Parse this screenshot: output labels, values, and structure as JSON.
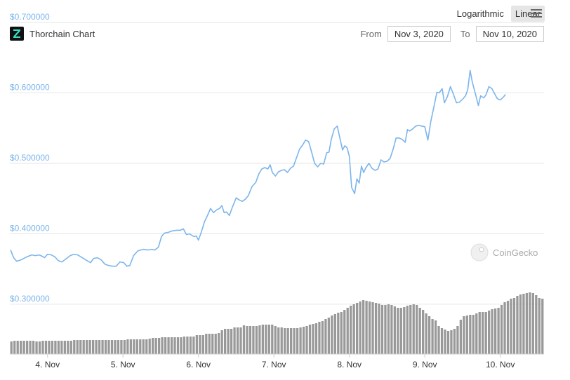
{
  "header": {
    "scale_options": [
      "Logarithmic",
      "Linear"
    ],
    "active_scale": "Linear",
    "title": "Thorchain Chart",
    "from_label": "From",
    "from_date": "Nov 3, 2020",
    "to_label": "To",
    "to_date": "Nov 10, 2020"
  },
  "watermark": "CoinGecko",
  "colors": {
    "line": "#7cb5ec",
    "volume": "#999999",
    "axis_label": "#7cb5ec",
    "grid": "#e6e6e6"
  },
  "chart_data": {
    "type": "line",
    "title": "Thorchain Chart",
    "x_unit": "days from Nov 4, 2020 00:00",
    "xlim": [
      -0.5,
      6.58
    ],
    "ylim": [
      0.28,
      0.72
    ],
    "y_ticks": [
      "$0.300000",
      "$0.400000",
      "$0.500000",
      "$0.600000",
      "$0.700000"
    ],
    "x_ticks": [
      "4. Nov",
      "5. Nov",
      "6. Nov",
      "7. Nov",
      "8. Nov",
      "9. Nov",
      "10. Nov"
    ],
    "series": [
      {
        "type": "line",
        "points": [
          [
            -0.49,
            0.377
          ],
          [
            -0.45,
            0.366
          ],
          [
            -0.41,
            0.361
          ],
          [
            -0.35,
            0.363
          ],
          [
            -0.28,
            0.367
          ],
          [
            -0.21,
            0.37
          ],
          [
            -0.16,
            0.369
          ],
          [
            -0.11,
            0.37
          ],
          [
            -0.07,
            0.368
          ],
          [
            -0.04,
            0.366
          ],
          [
            0.0,
            0.371
          ],
          [
            0.05,
            0.37
          ],
          [
            0.1,
            0.367
          ],
          [
            0.14,
            0.362
          ],
          [
            0.19,
            0.36
          ],
          [
            0.24,
            0.364
          ],
          [
            0.3,
            0.369
          ],
          [
            0.35,
            0.371
          ],
          [
            0.4,
            0.37
          ],
          [
            0.46,
            0.366
          ],
          [
            0.52,
            0.362
          ],
          [
            0.57,
            0.359
          ],
          [
            0.61,
            0.365
          ],
          [
            0.66,
            0.366
          ],
          [
            0.71,
            0.363
          ],
          [
            0.76,
            0.357
          ],
          [
            0.81,
            0.355
          ],
          [
            0.86,
            0.354
          ],
          [
            0.91,
            0.354
          ],
          [
            0.96,
            0.36
          ],
          [
            1.01,
            0.359
          ],
          [
            1.05,
            0.354
          ],
          [
            1.09,
            0.355
          ],
          [
            1.14,
            0.369
          ],
          [
            1.2,
            0.376
          ],
          [
            1.27,
            0.378
          ],
          [
            1.33,
            0.377
          ],
          [
            1.38,
            0.378
          ],
          [
            1.42,
            0.377
          ],
          [
            1.47,
            0.381
          ],
          [
            1.51,
            0.396
          ],
          [
            1.55,
            0.401
          ],
          [
            1.6,
            0.402
          ],
          [
            1.65,
            0.404
          ],
          [
            1.71,
            0.405
          ],
          [
            1.76,
            0.405
          ],
          [
            1.8,
            0.407
          ],
          [
            1.84,
            0.399
          ],
          [
            1.88,
            0.4
          ],
          [
            1.91,
            0.398
          ],
          [
            1.94,
            0.396
          ],
          [
            1.97,
            0.397
          ],
          [
            2.0,
            0.391
          ],
          [
            2.04,
            0.403
          ],
          [
            2.08,
            0.417
          ],
          [
            2.12,
            0.426
          ],
          [
            2.16,
            0.436
          ],
          [
            2.2,
            0.43
          ],
          [
            2.24,
            0.434
          ],
          [
            2.28,
            0.436
          ],
          [
            2.31,
            0.44
          ],
          [
            2.34,
            0.43
          ],
          [
            2.37,
            0.431
          ],
          [
            2.41,
            0.426
          ],
          [
            2.45,
            0.438
          ],
          [
            2.5,
            0.451
          ],
          [
            2.54,
            0.448
          ],
          [
            2.58,
            0.446
          ],
          [
            2.62,
            0.449
          ],
          [
            2.66,
            0.454
          ],
          [
            2.71,
            0.467
          ],
          [
            2.76,
            0.473
          ],
          [
            2.8,
            0.485
          ],
          [
            2.84,
            0.492
          ],
          [
            2.88,
            0.494
          ],
          [
            2.92,
            0.492
          ],
          [
            2.95,
            0.498
          ],
          [
            2.98,
            0.487
          ],
          [
            3.02,
            0.482
          ],
          [
            3.06,
            0.488
          ],
          [
            3.1,
            0.49
          ],
          [
            3.14,
            0.491
          ],
          [
            3.18,
            0.487
          ],
          [
            3.22,
            0.493
          ],
          [
            3.26,
            0.496
          ],
          [
            3.3,
            0.508
          ],
          [
            3.34,
            0.52
          ],
          [
            3.38,
            0.526
          ],
          [
            3.42,
            0.533
          ],
          [
            3.46,
            0.531
          ],
          [
            3.5,
            0.516
          ],
          [
            3.54,
            0.5
          ],
          [
            3.58,
            0.495
          ],
          [
            3.62,
            0.5
          ],
          [
            3.66,
            0.499
          ],
          [
            3.7,
            0.515
          ],
          [
            3.73,
            0.516
          ],
          [
            3.76,
            0.534
          ],
          [
            3.8,
            0.549
          ],
          [
            3.84,
            0.553
          ],
          [
            3.87,
            0.538
          ],
          [
            3.91,
            0.519
          ],
          [
            3.94,
            0.525
          ],
          [
            3.97,
            0.522
          ],
          [
            4.0,
            0.51
          ],
          [
            4.03,
            0.466
          ],
          [
            4.07,
            0.457
          ],
          [
            4.1,
            0.478
          ],
          [
            4.13,
            0.472
          ],
          [
            4.16,
            0.496
          ],
          [
            4.19,
            0.487
          ],
          [
            4.22,
            0.494
          ],
          [
            4.26,
            0.5
          ],
          [
            4.3,
            0.493
          ],
          [
            4.34,
            0.49
          ],
          [
            4.38,
            0.492
          ],
          [
            4.42,
            0.505
          ],
          [
            4.46,
            0.502
          ],
          [
            4.5,
            0.503
          ],
          [
            4.54,
            0.507
          ],
          [
            4.58,
            0.52
          ],
          [
            4.62,
            0.536
          ],
          [
            4.66,
            0.536
          ],
          [
            4.7,
            0.534
          ],
          [
            4.74,
            0.53
          ],
          [
            4.77,
            0.548
          ],
          [
            4.8,
            0.546
          ],
          [
            4.84,
            0.549
          ],
          [
            4.88,
            0.553
          ],
          [
            4.92,
            0.554
          ],
          [
            4.96,
            0.553
          ],
          [
            5.0,
            0.552
          ],
          [
            5.04,
            0.533
          ],
          [
            5.08,
            0.56
          ],
          [
            5.12,
            0.58
          ],
          [
            5.16,
            0.601
          ],
          [
            5.19,
            0.6
          ],
          [
            5.23,
            0.606
          ],
          [
            5.26,
            0.586
          ],
          [
            5.3,
            0.595
          ],
          [
            5.34,
            0.609
          ],
          [
            5.38,
            0.598
          ],
          [
            5.42,
            0.586
          ],
          [
            5.46,
            0.587
          ],
          [
            5.5,
            0.591
          ],
          [
            5.54,
            0.596
          ],
          [
            5.57,
            0.605
          ],
          [
            5.6,
            0.632
          ],
          [
            5.63,
            0.615
          ],
          [
            5.67,
            0.599
          ],
          [
            5.71,
            0.582
          ],
          [
            5.74,
            0.596
          ],
          [
            5.78,
            0.593
          ],
          [
            5.81,
            0.597
          ],
          [
            5.85,
            0.609
          ],
          [
            5.89,
            0.606
          ],
          [
            5.93,
            0.598
          ],
          [
            5.96,
            0.592
          ],
          [
            6.0,
            0.59
          ],
          [
            6.04,
            0.594
          ],
          [
            6.07,
            0.598
          ]
        ]
      },
      {
        "type": "bar",
        "name": "volume",
        "values": [
          18,
          19,
          19,
          19,
          19,
          19,
          19,
          19,
          18,
          18,
          19,
          19,
          19,
          19,
          19,
          19,
          19,
          19,
          19,
          19,
          20,
          20,
          20,
          20,
          20,
          20,
          20,
          20,
          20,
          20,
          20,
          20,
          20,
          20,
          20,
          20,
          20,
          21,
          21,
          21,
          21,
          21,
          21,
          21,
          22,
          23,
          23,
          23,
          24,
          24,
          24,
          24,
          24,
          24,
          24,
          25,
          25,
          25,
          25,
          27,
          27,
          27,
          29,
          29,
          29,
          29,
          30,
          34,
          36,
          36,
          36,
          38,
          38,
          38,
          41,
          40,
          40,
          40,
          40,
          41,
          42,
          42,
          42,
          42,
          40,
          38,
          38,
          37,
          37,
          37,
          37,
          37,
          38,
          39,
          40,
          42,
          43,
          44,
          46,
          47,
          50,
          52,
          55,
          57,
          59,
          60,
          63,
          66,
          69,
          71,
          73,
          75,
          77,
          76,
          75,
          74,
          73,
          72,
          70,
          70,
          71,
          70,
          68,
          66,
          66,
          67,
          69,
          70,
          71,
          70,
          66,
          63,
          58,
          54,
          50,
          48,
          40,
          37,
          35,
          33,
          34,
          36,
          40,
          49,
          54,
          55,
          56,
          56,
          58,
          60,
          60,
          60,
          62,
          64,
          65,
          66,
          70,
          74,
          76,
          79,
          80,
          83,
          85,
          86,
          87,
          88,
          87,
          84,
          80,
          79
        ]
      }
    ]
  }
}
